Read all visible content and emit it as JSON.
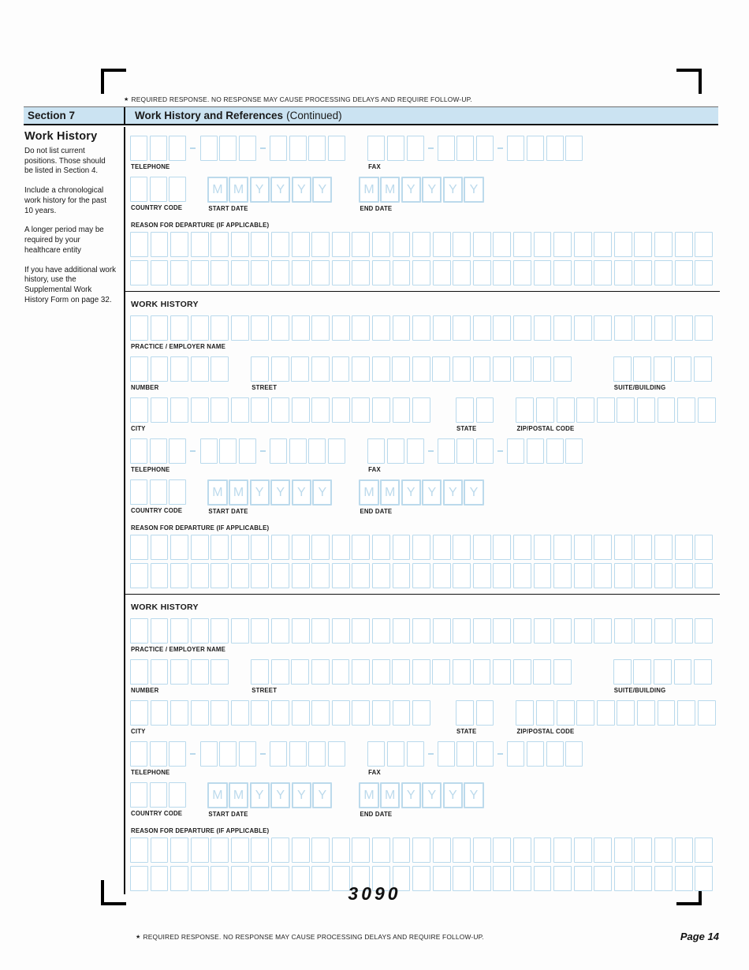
{
  "notes": {
    "star": "★",
    "required": "REQUIRED RESPONSE. NO RESPONSE MAY CAUSE PROCESSING DELAYS AND REQUIRE FOLLOW-UP."
  },
  "header": {
    "section": "Section 7",
    "title": "Work History and References",
    "continued": "(Continued)"
  },
  "sidebar": {
    "heading": "Work History",
    "paragraphs": [
      "Do not list current positions. Those should be listed in Section 4.",
      "Include a chronological work history for the past 10 years.",
      "A longer period may be required by your healthcare entity",
      "If you have additional work history, use the Supplemental Work History Form on page 32."
    ]
  },
  "labels": {
    "work_history": "WORK HISTORY",
    "practice": "PRACTICE / EMPLOYER NAME",
    "number": "NUMBER",
    "street": "STREET",
    "suite": "SUITE/BUILDING",
    "city": "CITY",
    "state": "STATE",
    "zip": "ZIP/POSTAL CODE",
    "telephone": "TELEPHONE",
    "fax": "FAX",
    "country_code": "COUNTRY CODE",
    "start_date": "START DATE",
    "end_date": "END DATE",
    "reason": "REASON FOR DEPARTURE (IF APPLICABLE)"
  },
  "date_cells": [
    "M",
    "M",
    "Y",
    "Y",
    "Y",
    "Y"
  ],
  "footer": {
    "form_number": "3090",
    "page": "Page 14"
  },
  "colors": {
    "header_bg": "#cbe3f2",
    "box_border": "#b9d9ec",
    "date_letter": "#bcdaec"
  }
}
